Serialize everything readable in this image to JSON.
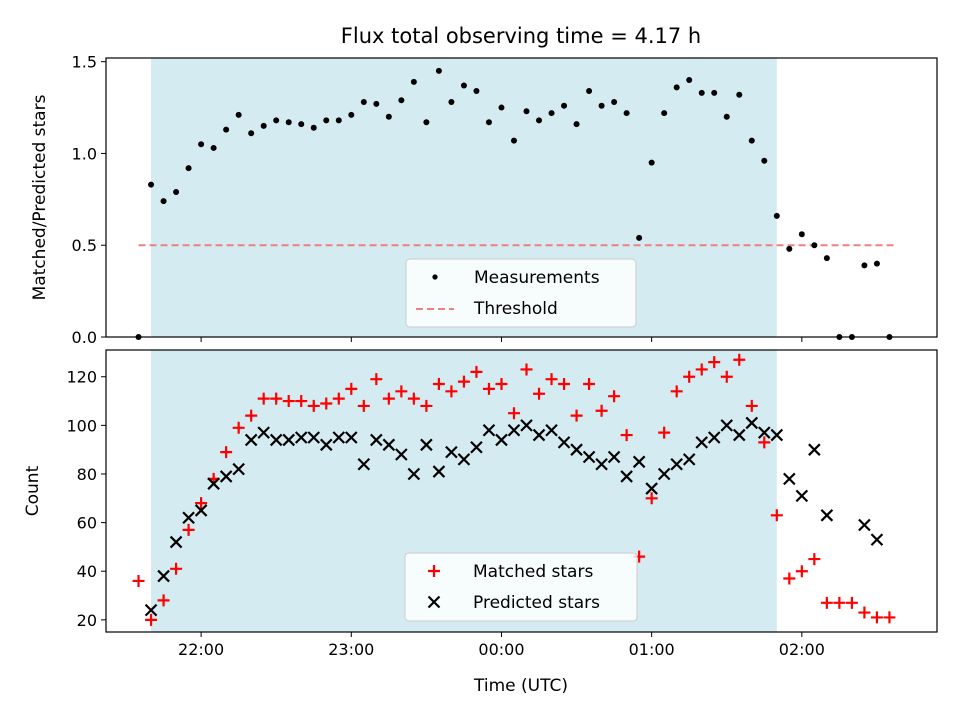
{
  "title": "Flux total observing time = 4.17 h",
  "xlabel": "Time (UTC)",
  "chart_data": [
    {
      "type": "scatter",
      "ylabel": "Matched/Predicted stars",
      "ylim": [
        0,
        1.52
      ],
      "xlim": [
        "21:22",
        "02:54"
      ],
      "yticks": [
        0.0,
        0.5,
        1.0,
        1.5
      ],
      "ytick_labels": [
        "0.0",
        "0.5",
        "1.0",
        "1.5"
      ],
      "observing_window": [
        "21:40",
        "01:50"
      ],
      "observing_window_color": "#d4ebf1",
      "legend": {
        "position": "lower-center",
        "entries": [
          "Measurements",
          "Threshold"
        ]
      },
      "threshold": {
        "name": "Threshold",
        "value": 0.5,
        "x_range": [
          "21:35",
          "02:38"
        ],
        "color": "#f08080",
        "style": "dashed"
      },
      "series": [
        {
          "name": "Measurements",
          "marker": "dot",
          "color": "#000000",
          "points": [
            [
              "21:35",
              0.0
            ],
            [
              "21:40",
              0.83
            ],
            [
              "21:45",
              0.74
            ],
            [
              "21:50",
              0.79
            ],
            [
              "21:55",
              0.92
            ],
            [
              "22:00",
              1.05
            ],
            [
              "22:05",
              1.03
            ],
            [
              "22:10",
              1.13
            ],
            [
              "22:15",
              1.21
            ],
            [
              "22:20",
              1.11
            ],
            [
              "22:25",
              1.15
            ],
            [
              "22:30",
              1.18
            ],
            [
              "22:35",
              1.17
            ],
            [
              "22:40",
              1.16
            ],
            [
              "22:45",
              1.14
            ],
            [
              "22:50",
              1.18
            ],
            [
              "22:55",
              1.18
            ],
            [
              "23:00",
              1.21
            ],
            [
              "23:05",
              1.28
            ],
            [
              "23:10",
              1.27
            ],
            [
              "23:15",
              1.2
            ],
            [
              "23:20",
              1.29
            ],
            [
              "23:25",
              1.39
            ],
            [
              "23:30",
              1.17
            ],
            [
              "23:35",
              1.45
            ],
            [
              "23:40",
              1.28
            ],
            [
              "23:45",
              1.37
            ],
            [
              "23:50",
              1.34
            ],
            [
              "23:55",
              1.17
            ],
            [
              "00:00",
              1.25
            ],
            [
              "00:05",
              1.07
            ],
            [
              "00:10",
              1.23
            ],
            [
              "00:15",
              1.18
            ],
            [
              "00:20",
              1.22
            ],
            [
              "00:25",
              1.26
            ],
            [
              "00:30",
              1.16
            ],
            [
              "00:35",
              1.34
            ],
            [
              "00:40",
              1.26
            ],
            [
              "00:45",
              1.28
            ],
            [
              "00:50",
              1.22
            ],
            [
              "00:55",
              0.54
            ],
            [
              "01:00",
              0.95
            ],
            [
              "01:05",
              1.22
            ],
            [
              "01:10",
              1.36
            ],
            [
              "01:15",
              1.4
            ],
            [
              "01:20",
              1.33
            ],
            [
              "01:25",
              1.33
            ],
            [
              "01:30",
              1.2
            ],
            [
              "01:35",
              1.32
            ],
            [
              "01:40",
              1.07
            ],
            [
              "01:45",
              0.96
            ],
            [
              "01:50",
              0.66
            ],
            [
              "01:55",
              0.48
            ],
            [
              "02:00",
              0.56
            ],
            [
              "02:05",
              0.5
            ],
            [
              "02:10",
              0.43
            ],
            [
              "02:15",
              0.0
            ],
            [
              "02:20",
              0.0
            ],
            [
              "02:25",
              0.39
            ],
            [
              "02:30",
              0.4
            ],
            [
              "02:35",
              0.0
            ]
          ]
        }
      ]
    },
    {
      "type": "scatter",
      "ylabel": "Count",
      "ylim": [
        15,
        131
      ],
      "xlim": [
        "21:22",
        "02:54"
      ],
      "yticks": [
        20,
        40,
        60,
        80,
        100,
        120
      ],
      "xticks": [
        "22:00",
        "23:00",
        "00:00",
        "01:00",
        "02:00"
      ],
      "observing_window": [
        "21:40",
        "01:50"
      ],
      "observing_window_color": "#d4ebf1",
      "legend": {
        "position": "lower-center",
        "entries": [
          "Matched stars",
          "Predicted stars"
        ]
      },
      "series": [
        {
          "name": "Matched stars",
          "marker": "plus",
          "color": "#ff0000",
          "points": [
            [
              "21:35",
              36
            ],
            [
              "21:40",
              20
            ],
            [
              "21:45",
              28
            ],
            [
              "21:50",
              41
            ],
            [
              "21:55",
              57
            ],
            [
              "22:00",
              68
            ],
            [
              "22:05",
              78
            ],
            [
              "22:10",
              89
            ],
            [
              "22:15",
              99
            ],
            [
              "22:20",
              104
            ],
            [
              "22:25",
              111
            ],
            [
              "22:30",
              111
            ],
            [
              "22:35",
              110
            ],
            [
              "22:40",
              110
            ],
            [
              "22:45",
              108
            ],
            [
              "22:50",
              109
            ],
            [
              "22:55",
              111
            ],
            [
              "23:00",
              115
            ],
            [
              "23:05",
              108
            ],
            [
              "23:10",
              119
            ],
            [
              "23:15",
              111
            ],
            [
              "23:20",
              114
            ],
            [
              "23:25",
              111
            ],
            [
              "23:30",
              108
            ],
            [
              "23:35",
              117
            ],
            [
              "23:40",
              114
            ],
            [
              "23:45",
              118
            ],
            [
              "23:50",
              122
            ],
            [
              "23:55",
              115
            ],
            [
              "00:00",
              117
            ],
            [
              "00:05",
              105
            ],
            [
              "00:10",
              123
            ],
            [
              "00:15",
              113
            ],
            [
              "00:20",
              119
            ],
            [
              "00:25",
              117
            ],
            [
              "00:30",
              104
            ],
            [
              "00:35",
              117
            ],
            [
              "00:40",
              106
            ],
            [
              "00:45",
              112
            ],
            [
              "00:50",
              96
            ],
            [
              "00:55",
              46
            ],
            [
              "01:00",
              70
            ],
            [
              "01:05",
              97
            ],
            [
              "01:10",
              114
            ],
            [
              "01:15",
              120
            ],
            [
              "01:20",
              123
            ],
            [
              "01:25",
              126
            ],
            [
              "01:30",
              120
            ],
            [
              "01:35",
              127
            ],
            [
              "01:40",
              108
            ],
            [
              "01:45",
              93
            ],
            [
              "01:50",
              63
            ],
            [
              "01:55",
              37
            ],
            [
              "02:00",
              40
            ],
            [
              "02:05",
              45
            ],
            [
              "02:10",
              27
            ],
            [
              "02:15",
              27
            ],
            [
              "02:20",
              27
            ],
            [
              "02:25",
              23
            ],
            [
              "02:30",
              21
            ],
            [
              "02:35",
              21
            ]
          ]
        },
        {
          "name": "Predicted stars",
          "marker": "x",
          "color": "#000000",
          "points": [
            [
              "21:40",
              24
            ],
            [
              "21:45",
              38
            ],
            [
              "21:50",
              52
            ],
            [
              "21:55",
              62
            ],
            [
              "22:00",
              65
            ],
            [
              "22:05",
              76
            ],
            [
              "22:10",
              79
            ],
            [
              "22:15",
              82
            ],
            [
              "22:20",
              94
            ],
            [
              "22:25",
              97
            ],
            [
              "22:30",
              94
            ],
            [
              "22:35",
              94
            ],
            [
              "22:40",
              95
            ],
            [
              "22:45",
              95
            ],
            [
              "22:50",
              92
            ],
            [
              "22:55",
              95
            ],
            [
              "23:00",
              95
            ],
            [
              "23:05",
              84
            ],
            [
              "23:10",
              94
            ],
            [
              "23:15",
              92
            ],
            [
              "23:20",
              88
            ],
            [
              "23:25",
              80
            ],
            [
              "23:30",
              92
            ],
            [
              "23:35",
              81
            ],
            [
              "23:40",
              89
            ],
            [
              "23:45",
              86
            ],
            [
              "23:50",
              91
            ],
            [
              "23:55",
              98
            ],
            [
              "00:00",
              94
            ],
            [
              "00:05",
              98
            ],
            [
              "00:10",
              100
            ],
            [
              "00:15",
              96
            ],
            [
              "00:20",
              98
            ],
            [
              "00:25",
              93
            ],
            [
              "00:30",
              90
            ],
            [
              "00:35",
              87
            ],
            [
              "00:40",
              84
            ],
            [
              "00:45",
              87
            ],
            [
              "00:50",
              79
            ],
            [
              "00:55",
              85
            ],
            [
              "01:00",
              74
            ],
            [
              "01:05",
              80
            ],
            [
              "01:10",
              84
            ],
            [
              "01:15",
              86
            ],
            [
              "01:20",
              93
            ],
            [
              "01:25",
              95
            ],
            [
              "01:30",
              100
            ],
            [
              "01:35",
              96
            ],
            [
              "01:40",
              101
            ],
            [
              "01:45",
              97
            ],
            [
              "01:50",
              96
            ],
            [
              "01:55",
              78
            ],
            [
              "02:00",
              71
            ],
            [
              "02:05",
              90
            ],
            [
              "02:10",
              63
            ],
            [
              "02:25",
              59
            ],
            [
              "02:30",
              53
            ]
          ]
        }
      ]
    }
  ]
}
